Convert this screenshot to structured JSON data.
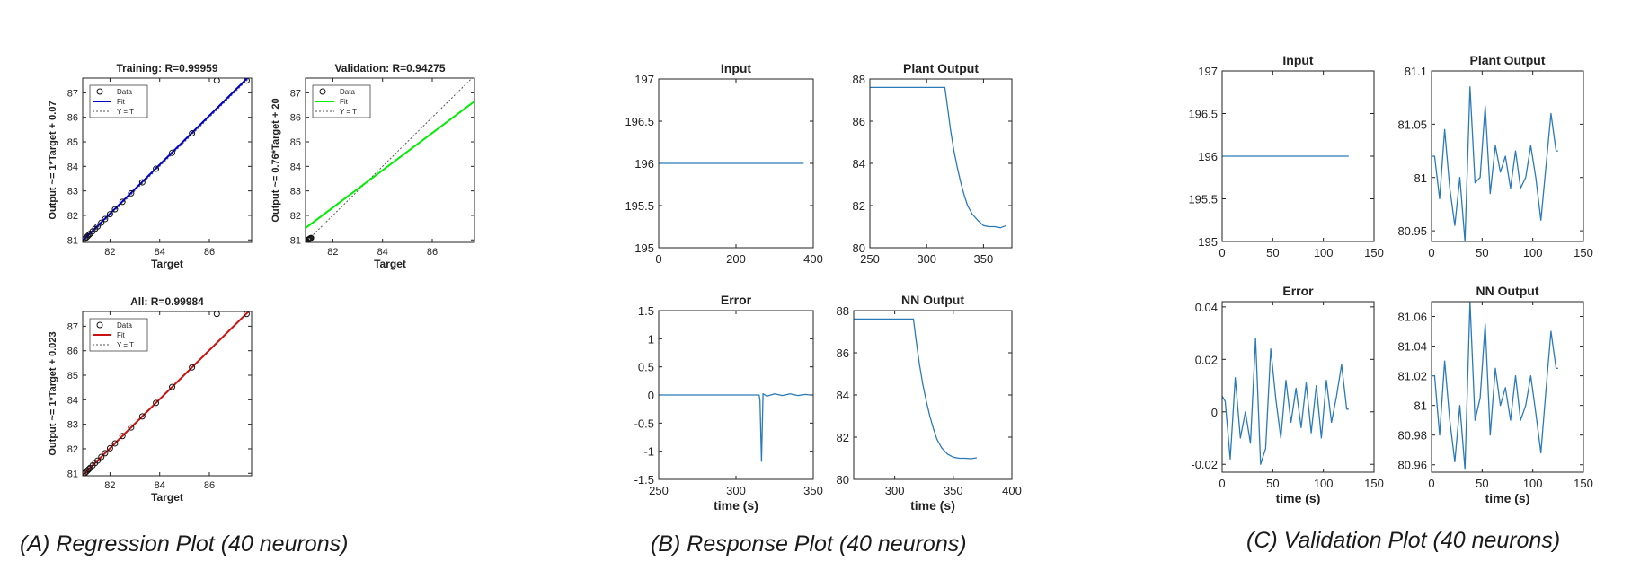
{
  "captions": {
    "a": "(A) Regression Plot (40 neurons)",
    "b": "(B) Response Plot (40 neurons)",
    "c": "(C) Validation Plot (40 neurons)"
  },
  "colors": {
    "training_fit": "#0000cc",
    "validation_fit": "#00ee00",
    "all_fit": "#cc1111",
    "response_line": "#2a7ab8",
    "axis": "#222222",
    "identity": "#555555"
  },
  "chart_data": [
    {
      "id": "training",
      "type": "scatter",
      "title": "Training: R=0.99959",
      "xlabel": "Target",
      "ylabel": "Output ~= 1*Target + 0.07",
      "xlim": [
        80.9,
        87.7
      ],
      "ylim": [
        80.9,
        87.6
      ],
      "xticks": [
        82,
        84,
        86
      ],
      "yticks": [
        81,
        82,
        83,
        84,
        85,
        86,
        87
      ],
      "legend": [
        "Data",
        "Fit",
        "Y = T"
      ],
      "legend_location": "top-left",
      "fit": {
        "slope": 1,
        "intercept": 0.07
      },
      "points_x": [
        81.0,
        81.05,
        81.1,
        81.15,
        81.2,
        81.3,
        81.4,
        81.5,
        81.65,
        81.8,
        82.0,
        82.2,
        82.5,
        82.85,
        83.3,
        83.85,
        84.5,
        85.3,
        86.3,
        87.5
      ],
      "points_y": [
        81.05,
        81.1,
        81.15,
        81.2,
        81.25,
        81.35,
        81.45,
        81.55,
        81.7,
        81.85,
        82.05,
        82.25,
        82.55,
        82.9,
        83.35,
        83.9,
        84.55,
        85.35,
        87.5,
        87.5
      ]
    },
    {
      "id": "validation",
      "type": "scatter",
      "title": "Validation: R=0.94275",
      "xlabel": "Target",
      "ylabel": "Output ~= 0.76*Target + 20",
      "xlim": [
        80.9,
        87.7
      ],
      "ylim": [
        80.9,
        87.6
      ],
      "xticks": [
        82,
        84,
        86
      ],
      "yticks": [
        81,
        82,
        83,
        84,
        85,
        86,
        87
      ],
      "legend": [
        "Data",
        "Fit",
        "Y = T"
      ],
      "legend_location": "top-left",
      "fit": {
        "slope": 0.76,
        "intercept": 20
      },
      "points_x": [
        81.0,
        81.03,
        81.06,
        81.09,
        81.12
      ],
      "points_y": [
        81.0,
        81.02,
        81.04,
        81.06,
        81.08
      ]
    },
    {
      "id": "all",
      "type": "scatter",
      "title": "All: R=0.99984",
      "xlabel": "Target",
      "ylabel": "Output ~= 1*Target + 0.023",
      "xlim": [
        80.9,
        87.7
      ],
      "ylim": [
        80.9,
        87.6
      ],
      "xticks": [
        82,
        84,
        86
      ],
      "yticks": [
        81,
        82,
        83,
        84,
        85,
        86,
        87
      ],
      "legend": [
        "Data",
        "Fit",
        "Y = T"
      ],
      "legend_location": "top-left",
      "fit": {
        "slope": 1,
        "intercept": 0.023
      },
      "points_x": [
        81.0,
        81.05,
        81.1,
        81.15,
        81.2,
        81.3,
        81.4,
        81.5,
        81.65,
        81.8,
        82.0,
        82.2,
        82.5,
        82.85,
        83.3,
        83.85,
        84.5,
        85.3,
        86.3,
        87.5
      ],
      "points_y": [
        81.02,
        81.07,
        81.12,
        81.17,
        81.22,
        81.32,
        81.42,
        81.52,
        81.67,
        81.82,
        82.02,
        82.22,
        82.52,
        82.87,
        83.32,
        83.87,
        84.52,
        85.32,
        87.5,
        87.5
      ]
    },
    {
      "id": "resp-input",
      "type": "line",
      "title": "Input",
      "xlabel": "",
      "ylabel": "",
      "xlim": [
        0,
        400
      ],
      "ylim": [
        195,
        197
      ],
      "xticks": [
        0,
        200,
        400
      ],
      "xticklabels": [
        "0",
        "200",
        "400"
      ],
      "yticks": [
        195,
        195.5,
        196,
        196.5,
        197
      ],
      "yticklabels": [
        "195",
        "195.5",
        "196",
        "196.5",
        "197"
      ],
      "x": [
        0,
        375
      ],
      "y": [
        196,
        196
      ]
    },
    {
      "id": "resp-plant",
      "type": "line",
      "title": "Plant Output",
      "xlabel": "",
      "ylabel": "",
      "xlim": [
        250,
        375
      ],
      "ylim": [
        80,
        88
      ],
      "xticks": [
        250,
        300,
        350
      ],
      "xticklabels": [
        "250",
        "300",
        "350"
      ],
      "yticks": [
        80,
        82,
        84,
        86,
        88
      ],
      "yticklabels": [
        "80",
        "82",
        "84",
        "86",
        "88"
      ],
      "x": [
        250,
        316,
        318,
        321,
        324,
        327,
        330,
        333,
        336,
        340,
        345,
        350,
        355,
        360,
        365,
        370
      ],
      "y": [
        87.6,
        87.6,
        86.8,
        85.6,
        84.6,
        83.8,
        83.1,
        82.5,
        82.0,
        81.6,
        81.3,
        81.05,
        81.0,
        81.0,
        80.95,
        81.05
      ]
    },
    {
      "id": "resp-error",
      "type": "line",
      "title": "Error",
      "xlabel": "time (s)",
      "ylabel": "",
      "xlim": [
        250,
        350
      ],
      "ylim": [
        -1.5,
        1.5
      ],
      "xticks": [
        250,
        300,
        350
      ],
      "xticklabels": [
        "250",
        "300",
        "350"
      ],
      "yticks": [
        -1.5,
        -1,
        -0.5,
        0,
        0.5,
        1,
        1.5
      ],
      "yticklabels": [
        "-1.5",
        "-1",
        "-0.5",
        "0",
        "0.5",
        "1",
        "1.5"
      ],
      "x": [
        250,
        315,
        315.5,
        316.5,
        317.5,
        320,
        325,
        330,
        335,
        340,
        345,
        348
      ],
      "y": [
        0,
        0,
        -0.1,
        -1.18,
        0.02,
        -0.02,
        0.02,
        -0.01,
        0.02,
        -0.01,
        0.01,
        0.0
      ]
    },
    {
      "id": "resp-nn",
      "type": "line",
      "title": "NN Output",
      "xlabel": "time (s)",
      "ylabel": "",
      "xlim": [
        265,
        400
      ],
      "ylim": [
        80,
        88
      ],
      "xticks": [
        300,
        350,
        400
      ],
      "xticklabels": [
        "300",
        "350",
        "400"
      ],
      "yticks": [
        80,
        82,
        84,
        86,
        88
      ],
      "yticklabels": [
        "80",
        "82",
        "84",
        "86",
        "88"
      ],
      "x": [
        265,
        316,
        318,
        321,
        324,
        327,
        330,
        333,
        336,
        340,
        345,
        350,
        355,
        360,
        365,
        370
      ],
      "y": [
        87.6,
        87.6,
        86.7,
        85.5,
        84.5,
        83.7,
        83.0,
        82.4,
        81.9,
        81.5,
        81.2,
        81.05,
        81.0,
        81.0,
        80.98,
        81.02
      ]
    },
    {
      "id": "val-input",
      "type": "line",
      "title": "Input",
      "xlabel": "",
      "ylabel": "",
      "xlim": [
        0,
        150
      ],
      "ylim": [
        195,
        197
      ],
      "xticks": [
        0,
        50,
        100,
        150
      ],
      "xticklabels": [
        "0",
        "50",
        "100",
        "150"
      ],
      "yticks": [
        195,
        195.5,
        196,
        196.5,
        197
      ],
      "yticklabels": [
        "195",
        "195.5",
        "196",
        "196.5",
        "197"
      ],
      "x": [
        0,
        125
      ],
      "y": [
        196,
        196
      ]
    },
    {
      "id": "val-plant",
      "type": "line",
      "title": "Plant Output",
      "xlabel": "",
      "ylabel": "",
      "xlim": [
        0,
        150
      ],
      "ylim": [
        80.94,
        81.1
      ],
      "xticks": [
        0,
        50,
        100,
        150
      ],
      "xticklabels": [
        "0",
        "50",
        "100",
        "150"
      ],
      "yticks": [
        80.95,
        81,
        81.05,
        81.1
      ],
      "yticklabels": [
        "80.95",
        "81",
        "81.05",
        "81.1"
      ],
      "x": [
        0,
        3,
        8,
        13,
        18,
        23,
        28,
        33,
        38,
        43,
        48,
        53,
        58,
        63,
        68,
        73,
        78,
        83,
        88,
        93,
        98,
        103,
        108,
        113,
        118,
        123,
        125
      ],
      "y": [
        81.02,
        81.02,
        80.98,
        81.045,
        80.99,
        80.955,
        81.0,
        80.94,
        81.085,
        80.995,
        81.0,
        81.067,
        80.985,
        81.03,
        81.005,
        81.02,
        80.99,
        81.025,
        80.99,
        81.0,
        81.03,
        81.0,
        80.96,
        81.01,
        81.06,
        81.025,
        81.025
      ]
    },
    {
      "id": "val-error",
      "type": "line",
      "title": "Error",
      "xlabel": "time (s)",
      "ylabel": "",
      "xlim": [
        0,
        150
      ],
      "ylim": [
        -0.023,
        0.042
      ],
      "xticks": [
        0,
        50,
        100,
        150
      ],
      "xticklabels": [
        "0",
        "50",
        "100",
        "150"
      ],
      "yticks": [
        -0.02,
        0,
        0.02,
        0.04
      ],
      "yticklabels": [
        "-0.02",
        "0",
        "0.02",
        "0.04"
      ],
      "x": [
        0,
        3,
        8,
        13,
        18,
        23,
        28,
        33,
        38,
        43,
        48,
        53,
        58,
        63,
        68,
        73,
        78,
        83,
        88,
        93,
        98,
        103,
        108,
        113,
        118,
        123,
        125
      ],
      "y": [
        0.006,
        0.004,
        -0.018,
        0.013,
        -0.01,
        0.0,
        -0.012,
        0.028,
        -0.02,
        -0.014,
        0.024,
        0.005,
        -0.01,
        0.012,
        -0.004,
        0.009,
        -0.006,
        0.011,
        -0.008,
        0.01,
        -0.01,
        0.012,
        -0.004,
        0.006,
        0.018,
        0.001,
        0.001
      ]
    },
    {
      "id": "val-nn",
      "type": "line",
      "title": "NN Output",
      "xlabel": "time (s)",
      "ylabel": "",
      "xlim": [
        0,
        150
      ],
      "ylim": [
        80.955,
        81.07
      ],
      "xticks": [
        0,
        50,
        100,
        150
      ],
      "xticklabels": [
        "0",
        "50",
        "100",
        "150"
      ],
      "yticks": [
        80.96,
        80.98,
        81,
        81.02,
        81.04,
        81.06
      ],
      "yticklabels": [
        "80.96",
        "80.98",
        "81",
        "81.02",
        "81.04",
        "81.06"
      ],
      "x": [
        0,
        3,
        8,
        13,
        18,
        23,
        28,
        33,
        38,
        43,
        48,
        53,
        58,
        63,
        68,
        73,
        78,
        83,
        88,
        93,
        98,
        103,
        108,
        113,
        118,
        123,
        125
      ],
      "y": [
        81.02,
        81.02,
        80.98,
        81.03,
        80.99,
        80.962,
        81.0,
        80.957,
        81.07,
        80.99,
        81.005,
        81.055,
        80.98,
        81.025,
        81.0,
        81.012,
        80.99,
        81.02,
        80.99,
        81.0,
        81.02,
        80.995,
        80.968,
        81.01,
        81.05,
        81.025,
        81.025
      ]
    }
  ]
}
